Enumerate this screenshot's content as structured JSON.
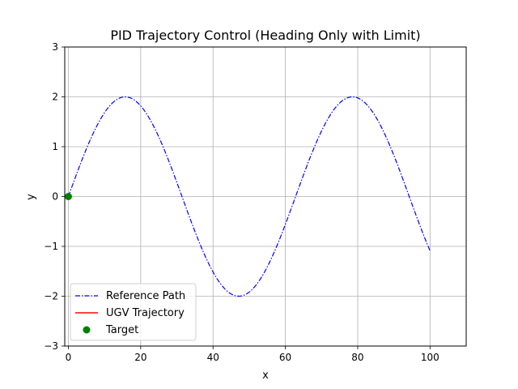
{
  "chart_data": {
    "type": "line",
    "title": "PID Trajectory Control (Heading Only with Limit)",
    "xlabel": "x",
    "ylabel": "y",
    "xlim": [
      -1,
      110
    ],
    "ylim": [
      -3,
      3
    ],
    "grid": true,
    "x_ticks": [
      0,
      20,
      40,
      60,
      80,
      100
    ],
    "y_ticks": [
      -3,
      -2,
      -1,
      0,
      1,
      2,
      3
    ],
    "x_tick_labels": [
      "0",
      "20",
      "40",
      "60",
      "80",
      "100"
    ],
    "y_tick_labels": [
      "−3",
      "−2",
      "−1",
      "0",
      "1",
      "2",
      "3"
    ],
    "legend_position": "lower-left",
    "series": [
      {
        "name": "Reference Path",
        "kind": "line",
        "style": "dashdot",
        "color": "#0000ff",
        "function": "y = 2*sin(0.1*x)",
        "x_range": [
          0,
          100
        ],
        "samples": 400
      },
      {
        "name": "UGV Trajectory",
        "kind": "line",
        "style": "solid",
        "color": "#ff0000",
        "points": []
      },
      {
        "name": "Target",
        "kind": "marker",
        "color": "#008000",
        "points": [
          [
            0,
            0
          ]
        ]
      }
    ],
    "legend": [
      "Reference Path",
      "UGV Trajectory",
      "Target"
    ]
  }
}
